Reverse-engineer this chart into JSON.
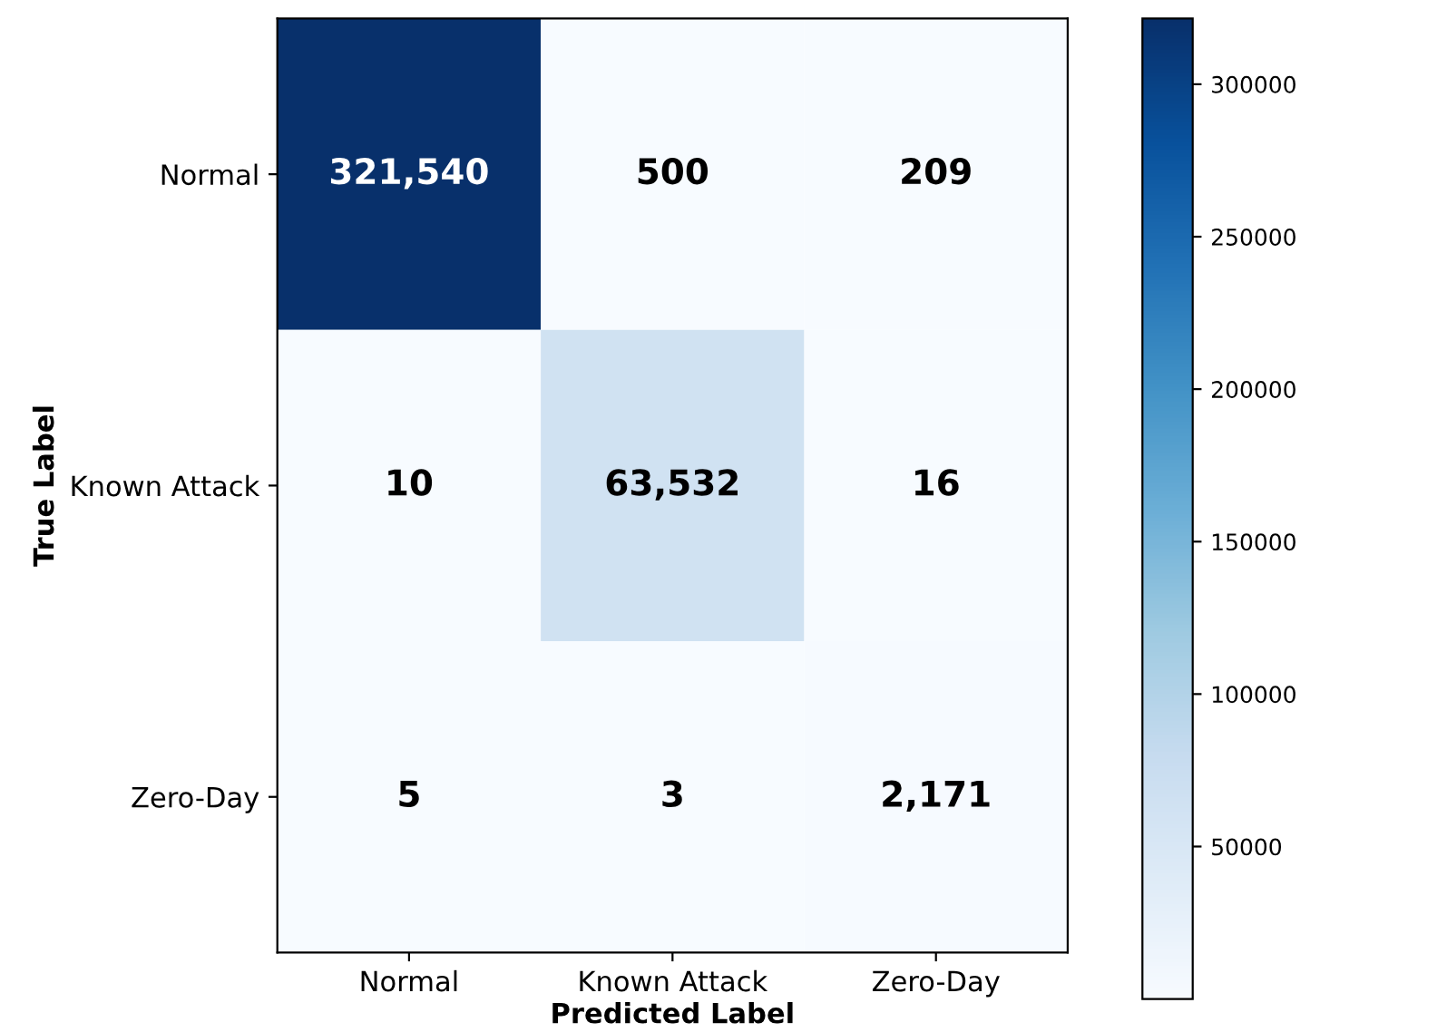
{
  "chart_data": {
    "type": "heatmap",
    "xlabel": "Predicted Label",
    "ylabel": "True Label",
    "categories": [
      "Normal",
      "Known Attack",
      "Zero-Day"
    ],
    "y_categories": [
      "Normal",
      "Known Attack",
      "Zero-Day"
    ],
    "cells": [
      [
        321540,
        500,
        209
      ],
      [
        10,
        63532,
        16
      ],
      [
        5,
        3,
        2171
      ]
    ],
    "cell_labels": [
      [
        "321,540",
        "500",
        "209"
      ],
      [
        "10",
        "63,532",
        "16"
      ],
      [
        "5",
        "3",
        "2,171"
      ]
    ],
    "clim": [
      3,
      321540
    ],
    "cticks": [
      50000,
      100000,
      150000,
      200000,
      250000,
      300000
    ]
  }
}
